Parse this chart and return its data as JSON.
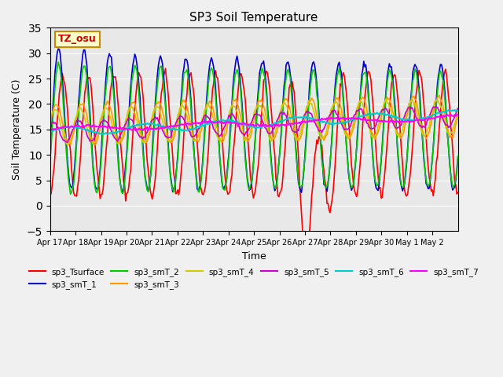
{
  "title": "SP3 Soil Temperature",
  "ylabel": "Soil Temperature (C)",
  "xlabel": "Time",
  "ylim": [
    -5,
    35
  ],
  "annotation": "TZ_osu",
  "bg_color": "#e8e8e8",
  "series_colors": {
    "sp3_Tsurface": "#ff0000",
    "sp3_smT_1": "#0000cc",
    "sp3_smT_2": "#00cc00",
    "sp3_smT_3": "#ff9900",
    "sp3_smT_4": "#cccc00",
    "sp3_smT_5": "#cc00cc",
    "sp3_smT_6": "#00cccc",
    "sp3_smT_7": "#ff00ff"
  },
  "x_tick_labels": [
    "Apr 17",
    "Apr 18",
    "Apr 19",
    "Apr 20",
    "Apr 21",
    "Apr 22",
    "Apr 23",
    "Apr 24",
    "Apr 25",
    "Apr 26",
    "Apr 27",
    "Apr 28",
    "Apr 29",
    "Apr 30",
    "May 1",
    "May 2"
  ],
  "n_points": 400,
  "date_start": 0,
  "date_end": 16
}
